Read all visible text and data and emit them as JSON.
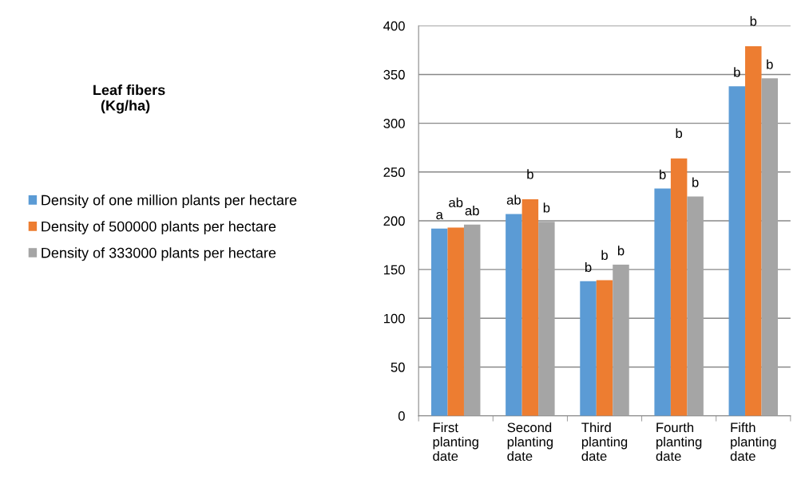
{
  "chart_data": {
    "type": "bar",
    "title": "Leaf fibers\n  (Kg/ha)",
    "categories": [
      "First planting date",
      "Second planting date",
      "Third planting date",
      "Fourth planting date",
      "Fifth planting date"
    ],
    "series": [
      {
        "name": "Density of one million plants per hectare",
        "color": "#5b9bd5",
        "values": [
          192,
          207,
          138,
          233,
          338
        ]
      },
      {
        "name": "Density of 500000 plants per hectare",
        "color": "#ed7d31",
        "values": [
          193,
          222,
          139,
          264,
          379
        ]
      },
      {
        "name": "Density of 333000 plants per hectare",
        "color": "#a5a5a5",
        "values": [
          196,
          199,
          155,
          225,
          346
        ]
      }
    ],
    "ylim": [
      0,
      400
    ],
    "yticks": [
      0,
      50,
      100,
      150,
      200,
      250,
      300,
      350,
      400
    ],
    "grid": "y",
    "legend": "left",
    "annotations": [
      "a",
      "ab",
      "ab",
      "ab",
      "b",
      "b",
      "b",
      "b",
      "b",
      "b",
      "b",
      "b",
      "b",
      "b",
      "b"
    ]
  }
}
